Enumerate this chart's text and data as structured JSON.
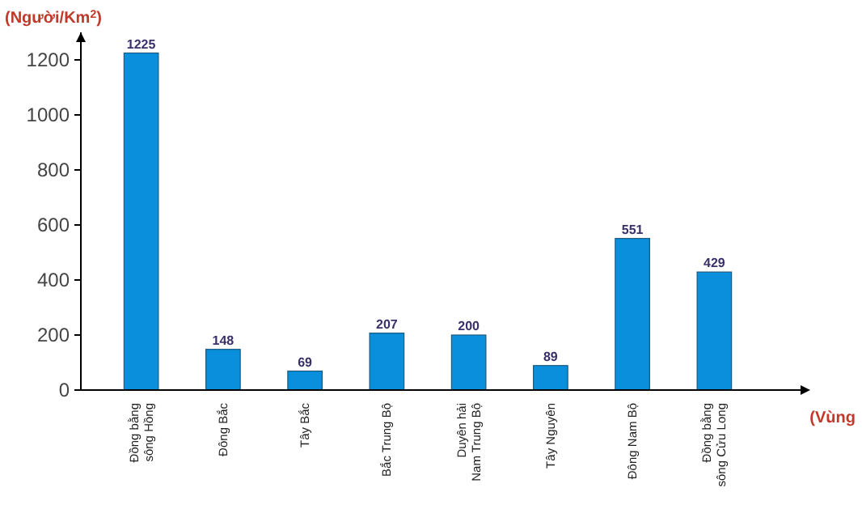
{
  "chart_data": {
    "type": "bar",
    "ylabel": "(Người/Km$^{2}$)",
    "xlabel": "(Vùng",
    "categories": [
      "Đồng bằng\nsông Hồng",
      "Đông Bắc",
      "Tây Bắc",
      "Bắc Trung Bộ",
      "Duyên hải\nNam Trung Bộ",
      "Tây Nguyên",
      "Đông Nam Bộ",
      "Đồng bằng\nsông Cửu Long"
    ],
    "values": [
      1225,
      148,
      69,
      207,
      200,
      89,
      551,
      429
    ],
    "color": "#0a8fdc",
    "ylim": [
      0,
      1300
    ],
    "yticks": [
      0,
      200,
      400,
      600,
      800,
      1000,
      1200
    ],
    "data_labels": true,
    "grid": false
  }
}
